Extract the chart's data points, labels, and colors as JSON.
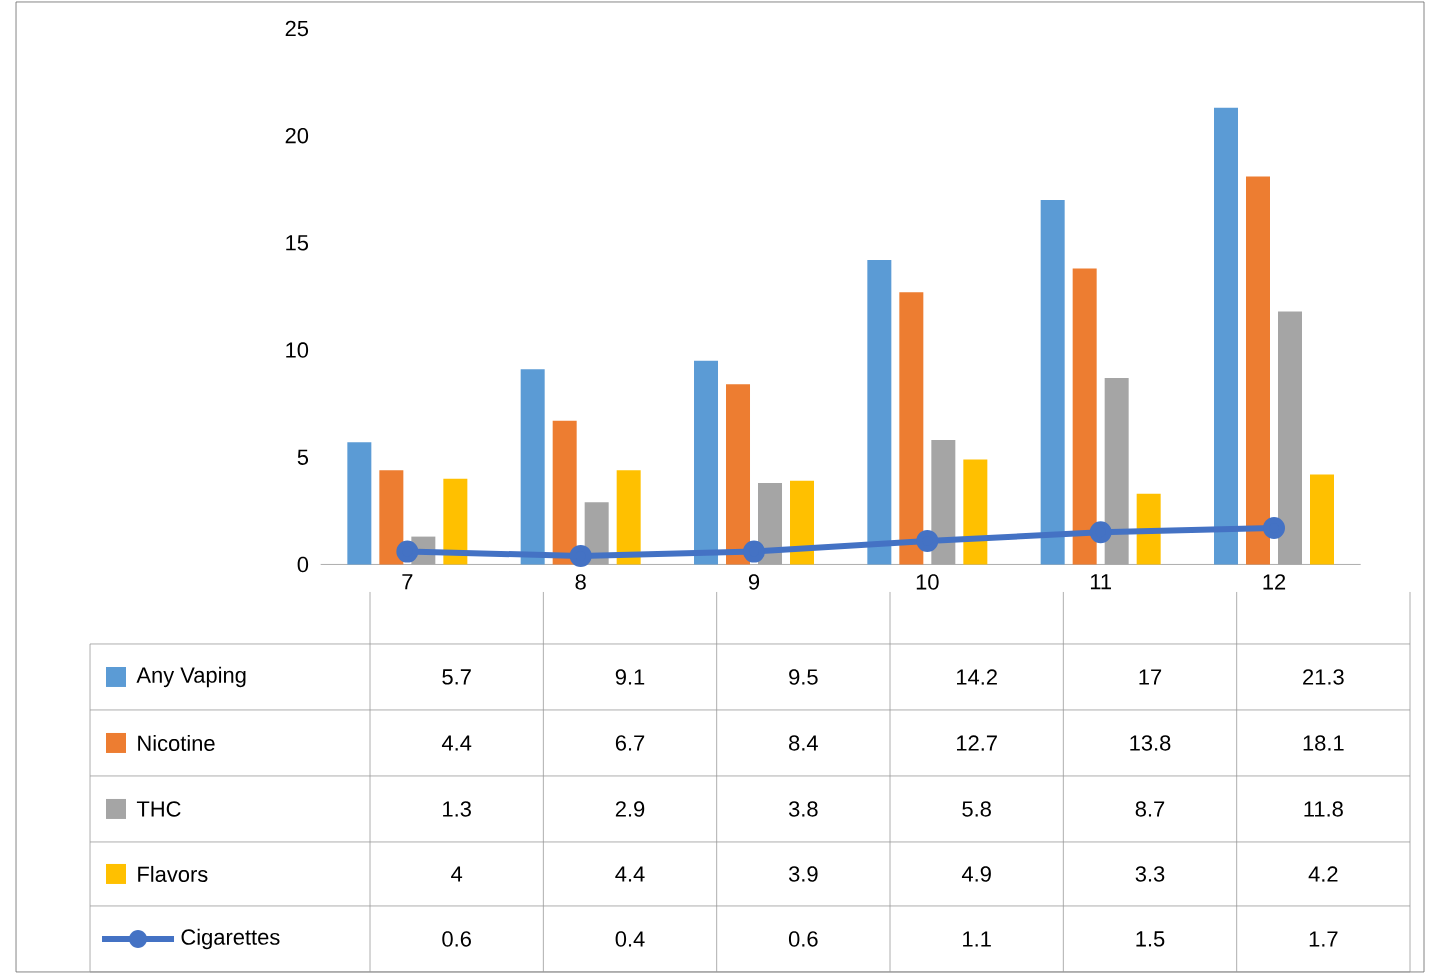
{
  "chart_data": {
    "type": "bar",
    "categories": [
      "7",
      "8",
      "9",
      "10",
      "11",
      "12"
    ],
    "ylim": [
      0,
      25
    ],
    "yticks": [
      0,
      5,
      10,
      15,
      20,
      25
    ],
    "grid": false,
    "legend": "bottom",
    "data_labels": true,
    "series": [
      {
        "name": "Any Vaping",
        "color": "#5b9bd5",
        "values": [
          5.7,
          9.1,
          9.5,
          14.2,
          17,
          21.3
        ]
      },
      {
        "name": "Nicotine",
        "color": "#ed7d31",
        "values": [
          4.4,
          6.7,
          8.4,
          12.7,
          13.8,
          18.1
        ]
      },
      {
        "name": "THC",
        "color": "#a5a5a5",
        "values": [
          1.3,
          2.9,
          3.8,
          5.8,
          8.7,
          11.8
        ]
      },
      {
        "name": "Flavors",
        "color": "#ffc000",
        "values": [
          4,
          4.4,
          3.9,
          4.9,
          3.3,
          4.2
        ]
      },
      {
        "name": "Cigarettes",
        "color": "#4472c4",
        "type": "line",
        "marker": "circle",
        "values": [
          0.6,
          0.4,
          0.6,
          1.1,
          1.5,
          1.7
        ]
      }
    ]
  }
}
